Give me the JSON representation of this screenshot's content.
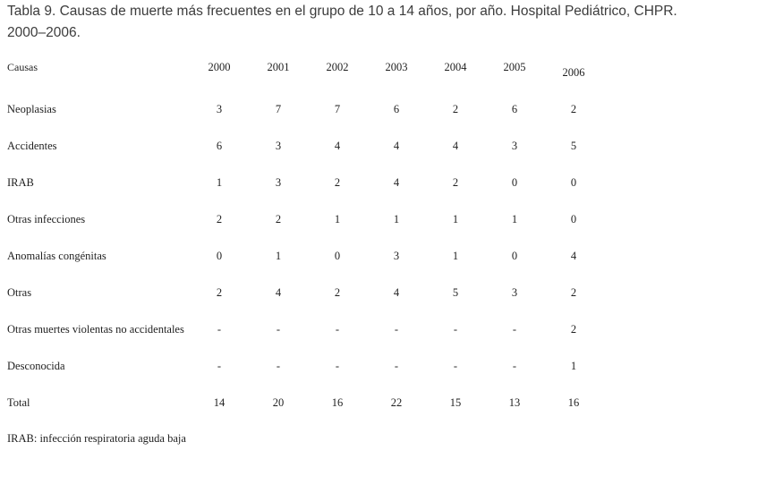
{
  "title": "Tabla 9. Causas de muerte más frecuentes en el grupo de 10 a 14 años, por año. Hospital Pediátrico, CHPR. 2000–2006.",
  "table": {
    "header": {
      "causas": "Causas",
      "years": [
        "2000",
        "2001",
        "2002",
        "2003",
        "2004",
        "2005",
        "2006"
      ]
    },
    "rows": [
      {
        "label": "Neoplasias",
        "values": [
          "3",
          "7",
          "7",
          "6",
          "2",
          "6",
          "2"
        ]
      },
      {
        "label": "Accidentes",
        "values": [
          "6",
          "3",
          "4",
          "4",
          "4",
          "3",
          "5"
        ]
      },
      {
        "label": "IRAB",
        "values": [
          "1",
          "3",
          "2",
          "4",
          "2",
          "0",
          "0"
        ]
      },
      {
        "label": "Otras infecciones",
        "values": [
          "2",
          "2",
          "1",
          "1",
          "1",
          "1",
          "0"
        ]
      },
      {
        "label": "Anomalías congénitas",
        "values": [
          "0",
          "1",
          "0",
          "3",
          "1",
          "0",
          "4"
        ]
      },
      {
        "label": "Otras",
        "values": [
          "2",
          "4",
          "2",
          "4",
          "5",
          "3",
          "2"
        ]
      },
      {
        "label": "Otras muertes violentas no accidentales",
        "values": [
          "-",
          "-",
          "-",
          "-",
          "-",
          "-",
          "2"
        ]
      },
      {
        "label": "Desconocida",
        "values": [
          "-",
          "-",
          "-",
          "-",
          "-",
          "-",
          "1"
        ]
      },
      {
        "label": "Total",
        "values": [
          "14",
          "20",
          "16",
          "22",
          "15",
          "13",
          "16"
        ]
      }
    ],
    "footnote": "IRAB: infección respiratoria aguda baja"
  }
}
